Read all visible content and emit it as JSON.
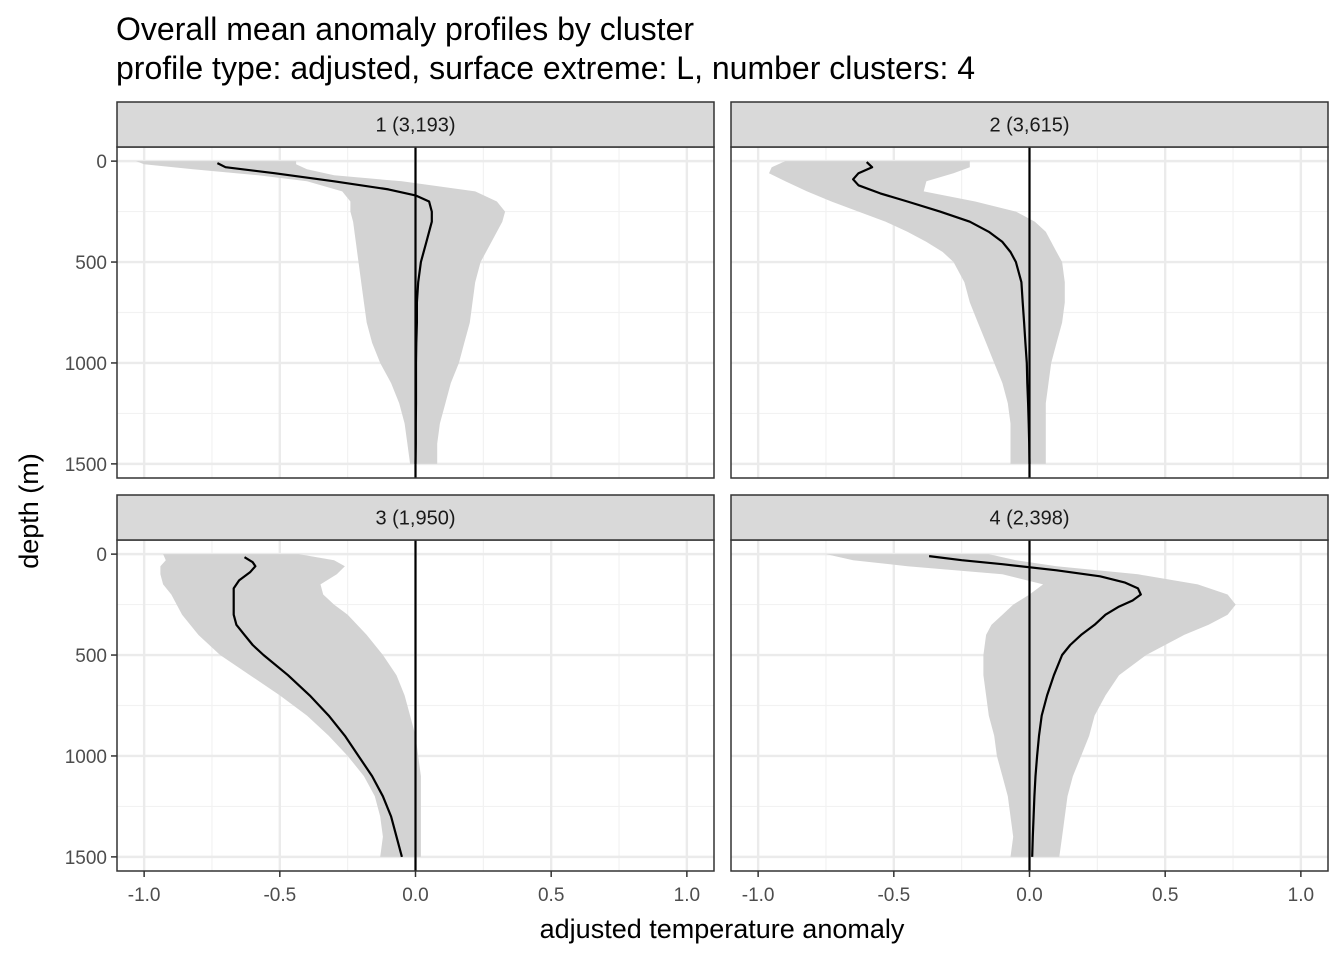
{
  "chart_data": {
    "type": "line",
    "title": "Overall mean anomaly profiles by cluster",
    "subtitle": "profile type: adjusted, surface extreme: L, number clusters: 4",
    "xlabel": "adjusted temperature anomaly",
    "ylabel": "depth (m)",
    "xlim": [
      -1.1,
      1.1
    ],
    "ylim": [
      1570,
      -70
    ],
    "y_reversed": true,
    "x_ticks": [
      "-1.0",
      "-0.5",
      "0.0",
      "0.5",
      "1.0"
    ],
    "y_ticks": [
      "0",
      "500",
      "1000",
      "1500"
    ],
    "grid": true,
    "reference_line_x": 0,
    "series_description": "mean profile (line) with shaded band",
    "panels": [
      {
        "label": "1 (3,193)",
        "mean": {
          "depth": [
            10,
            30,
            60,
            100,
            140,
            170,
            200,
            250,
            300,
            350,
            400,
            500,
            600,
            700,
            800,
            900,
            1000,
            1100,
            1200,
            1300,
            1400,
            1500
          ],
          "value": [
            -0.73,
            -0.7,
            -0.52,
            -0.3,
            -0.1,
            0.0,
            0.05,
            0.06,
            0.06,
            0.05,
            0.04,
            0.02,
            0.01,
            0.005,
            0.005,
            0.003,
            0.002,
            0.002,
            0.002,
            0.001,
            0.001,
            0.0
          ]
        },
        "band": {
          "depth": [
            0,
            15,
            40,
            70,
            100,
            150,
            200,
            250,
            300,
            400,
            500,
            600,
            700,
            800,
            900,
            1000,
            1100,
            1200,
            1300,
            1400,
            1500
          ],
          "lower": [
            -1.03,
            -1.0,
            -0.82,
            -0.58,
            -0.4,
            -0.27,
            -0.24,
            -0.24,
            -0.23,
            -0.22,
            -0.21,
            -0.2,
            -0.19,
            -0.18,
            -0.16,
            -0.13,
            -0.09,
            -0.06,
            -0.04,
            -0.03,
            -0.02
          ],
          "upper": [
            -0.44,
            -0.44,
            -0.4,
            -0.3,
            -0.05,
            0.22,
            0.3,
            0.33,
            0.32,
            0.28,
            0.24,
            0.22,
            0.21,
            0.2,
            0.18,
            0.16,
            0.13,
            0.11,
            0.09,
            0.08,
            0.08
          ]
        }
      },
      {
        "label": "2 (3,615)",
        "mean": {
          "depth": [
            5,
            30,
            60,
            90,
            120,
            160,
            200,
            250,
            300,
            350,
            400,
            450,
            500,
            600,
            700,
            800,
            900,
            1000,
            1100,
            1200,
            1300,
            1400,
            1500
          ],
          "value": [
            -0.6,
            -0.58,
            -0.63,
            -0.65,
            -0.63,
            -0.55,
            -0.45,
            -0.33,
            -0.22,
            -0.15,
            -0.1,
            -0.07,
            -0.05,
            -0.03,
            -0.025,
            -0.02,
            -0.015,
            -0.01,
            -0.008,
            -0.005,
            -0.003,
            -0.001,
            0.0
          ]
        },
        "band": {
          "depth": [
            0,
            30,
            60,
            100,
            150,
            200,
            250,
            300,
            350,
            400,
            450,
            500,
            600,
            700,
            800,
            900,
            1000,
            1100,
            1200,
            1300,
            1400,
            1500
          ],
          "lower": [
            -0.9,
            -0.95,
            -0.96,
            -0.9,
            -0.82,
            -0.73,
            -0.63,
            -0.53,
            -0.45,
            -0.38,
            -0.32,
            -0.28,
            -0.24,
            -0.22,
            -0.19,
            -0.16,
            -0.13,
            -0.1,
            -0.08,
            -0.07,
            -0.07,
            -0.07
          ],
          "upper": [
            -0.22,
            -0.22,
            -0.28,
            -0.38,
            -0.39,
            -0.2,
            -0.05,
            0.02,
            0.06,
            0.08,
            0.1,
            0.12,
            0.13,
            0.13,
            0.12,
            0.1,
            0.08,
            0.07,
            0.06,
            0.06,
            0.06,
            0.06
          ]
        }
      },
      {
        "label": "3 (1,950)",
        "mean": {
          "depth": [
            15,
            40,
            60,
            90,
            130,
            170,
            200,
            250,
            300,
            350,
            400,
            450,
            500,
            600,
            700,
            800,
            900,
            1000,
            1100,
            1200,
            1300,
            1400,
            1500
          ],
          "value": [
            -0.63,
            -0.6,
            -0.59,
            -0.61,
            -0.65,
            -0.67,
            -0.67,
            -0.67,
            -0.67,
            -0.66,
            -0.63,
            -0.6,
            -0.56,
            -0.47,
            -0.39,
            -0.32,
            -0.26,
            -0.21,
            -0.16,
            -0.12,
            -0.09,
            -0.07,
            -0.05
          ]
        },
        "band": {
          "depth": [
            0,
            30,
            60,
            100,
            150,
            200,
            250,
            300,
            400,
            500,
            600,
            700,
            800,
            900,
            1000,
            1100,
            1200,
            1300,
            1400,
            1500
          ],
          "lower": [
            -0.93,
            -0.92,
            -0.94,
            -0.94,
            -0.93,
            -0.9,
            -0.88,
            -0.86,
            -0.8,
            -0.72,
            -0.61,
            -0.5,
            -0.4,
            -0.32,
            -0.25,
            -0.19,
            -0.15,
            -0.13,
            -0.12,
            -0.13
          ],
          "upper": [
            -0.43,
            -0.3,
            -0.26,
            -0.29,
            -0.35,
            -0.34,
            -0.3,
            -0.25,
            -0.18,
            -0.12,
            -0.07,
            -0.04,
            -0.02,
            0.0,
            0.01,
            0.02,
            0.02,
            0.02,
            0.02,
            0.02
          ]
        }
      },
      {
        "label": "4 (2,398)",
        "mean": {
          "depth": [
            10,
            30,
            50,
            80,
            110,
            140,
            170,
            200,
            230,
            260,
            300,
            350,
            400,
            450,
            500,
            600,
            700,
            800,
            900,
            1000,
            1100,
            1200,
            1300,
            1400,
            1500
          ],
          "value": [
            -0.37,
            -0.25,
            -0.1,
            0.1,
            0.26,
            0.35,
            0.4,
            0.41,
            0.38,
            0.33,
            0.28,
            0.24,
            0.19,
            0.15,
            0.12,
            0.09,
            0.065,
            0.045,
            0.035,
            0.028,
            0.022,
            0.018,
            0.015,
            0.012,
            0.01
          ]
        },
        "band": {
          "depth": [
            0,
            30,
            60,
            100,
            150,
            200,
            250,
            300,
            350,
            400,
            500,
            600,
            700,
            800,
            900,
            1000,
            1100,
            1200,
            1300,
            1400,
            1500
          ],
          "lower": [
            -0.75,
            -0.65,
            -0.45,
            -0.1,
            0.05,
            0.0,
            -0.06,
            -0.1,
            -0.14,
            -0.16,
            -0.17,
            -0.17,
            -0.16,
            -0.15,
            -0.13,
            -0.12,
            -0.1,
            -0.08,
            -0.07,
            -0.06,
            -0.07
          ],
          "upper": [
            -0.15,
            -0.05,
            0.1,
            0.4,
            0.62,
            0.73,
            0.76,
            0.73,
            0.66,
            0.57,
            0.43,
            0.33,
            0.28,
            0.24,
            0.22,
            0.19,
            0.16,
            0.14,
            0.13,
            0.12,
            0.11
          ]
        }
      }
    ]
  }
}
